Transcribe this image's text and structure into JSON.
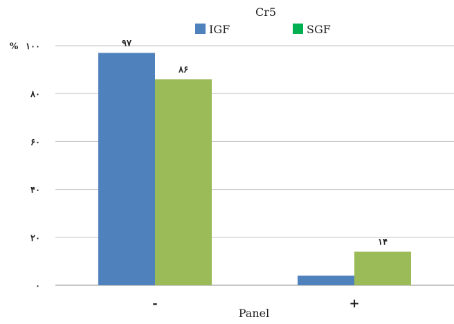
{
  "chart_data": {
    "type": "bar",
    "title": "Cr5",
    "xlabel": "Panel",
    "ylabel": "",
    "y_unit_label": "%",
    "ylim": [
      0,
      100
    ],
    "yticks": [
      0,
      20,
      40,
      60,
      80,
      100
    ],
    "ytick_labels": [
      "۰",
      "۲۰",
      "۴۰",
      "۶۰",
      "۸۰",
      "۱۰۰"
    ],
    "grid": true,
    "legend_position": "top",
    "categories": [
      "-",
      "+"
    ],
    "series": [
      {
        "name": "IGF",
        "color": "#4F81BD",
        "values": [
          97,
          4
        ],
        "data_labels": [
          "۹۷",
          ""
        ]
      },
      {
        "name": "SGF",
        "color": "#9BBB59",
        "values": [
          86,
          14
        ],
        "data_labels": [
          "۸۶",
          "۱۴"
        ]
      }
    ],
    "legend_swatch_colors": [
      "#4F81BD",
      "#00B050"
    ]
  }
}
